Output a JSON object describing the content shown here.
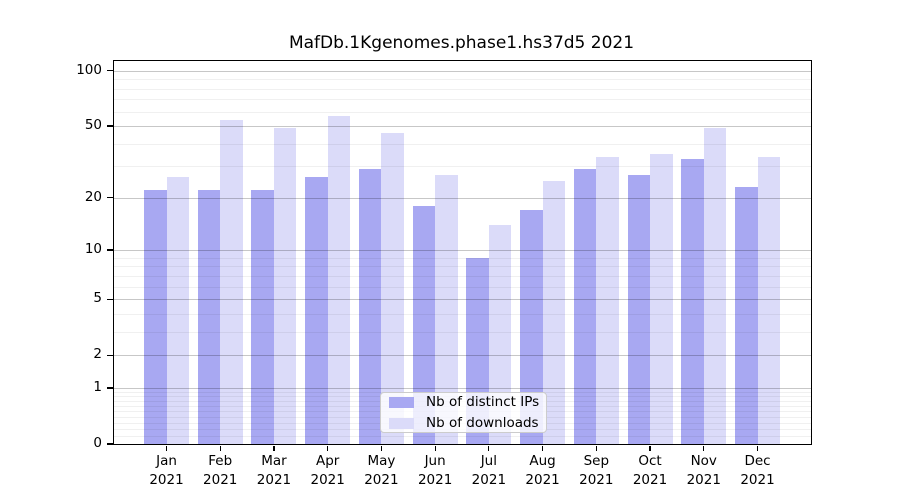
{
  "chart_data": {
    "type": "bar",
    "title": "MafDb.1Kgenomes.phase1.hs37d5 2021",
    "categories": [
      "Jan",
      "Feb",
      "Mar",
      "Apr",
      "May",
      "Jun",
      "Jul",
      "Aug",
      "Sep",
      "Oct",
      "Nov",
      "Dec"
    ],
    "year_label": "2021",
    "series": [
      {
        "name": "Nb of distinct IPs",
        "color": "#a8a8f2",
        "values": [
          22,
          22,
          22,
          26,
          29,
          18,
          9,
          17,
          29,
          27,
          33,
          23
        ]
      },
      {
        "name": "Nb of downloads",
        "color": "#dbdbf9",
        "values": [
          26,
          54,
          49,
          57,
          46,
          27,
          14,
          25,
          34,
          35,
          49,
          34
        ]
      }
    ],
    "yscale": "log1p",
    "yticks": [
      0,
      1,
      2,
      5,
      10,
      20,
      50,
      100
    ],
    "minor_yticks": [
      0.1,
      0.2,
      0.3,
      0.4,
      0.5,
      0.6,
      0.7,
      0.8,
      0.9,
      3,
      4,
      6,
      7,
      8,
      9,
      30,
      40,
      60,
      70,
      80,
      90
    ],
    "ylim": [
      0,
      113
    ],
    "xlabel": "",
    "ylabel": "",
    "grid": "on",
    "legend_position": "lower center",
    "colors": {
      "major_grid": "rgba(0,0,0,0.22)",
      "minor_grid": "rgba(0,0,0,0.06)",
      "axis": "#000000",
      "legend_background": "rgba(255,255,255,0.8)",
      "legend_border": "#cccccc",
      "background": "#ffffff"
    }
  }
}
